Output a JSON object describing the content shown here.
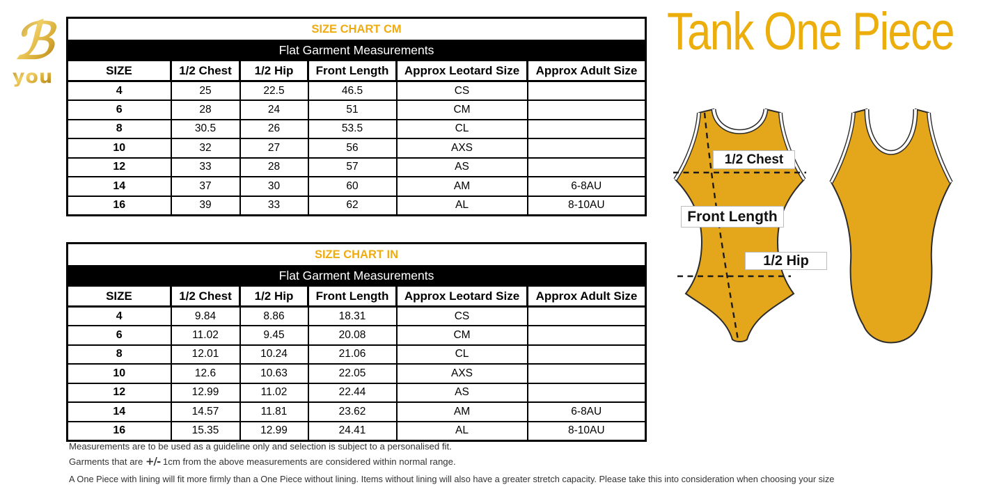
{
  "header": {
    "product_title": "Tank One Piece"
  },
  "logo": {
    "letter": "ℬ",
    "word": "you"
  },
  "colors": {
    "accent_gold": "#EFAC10",
    "title_gold": "#EBAE0C",
    "leotard_gold": "#E4A71C",
    "bar_black": "#000000"
  },
  "tables": [
    {
      "title": "SIZE CHART CM",
      "subtitle": "Flat Garment Measurements",
      "columns": [
        "SIZE",
        "1/2 Chest",
        "1/2 Hip",
        "Front Length",
        "Approx Leotard Size",
        "Approx Adult Size"
      ],
      "rows": [
        [
          "4",
          "25",
          "22.5",
          "46.5",
          "CS",
          ""
        ],
        [
          "6",
          "28",
          "24",
          "51",
          "CM",
          ""
        ],
        [
          "8",
          "30.5",
          "26",
          "53.5",
          "CL",
          ""
        ],
        [
          "10",
          "32",
          "27",
          "56",
          "AXS",
          ""
        ],
        [
          "12",
          "33",
          "28",
          "57",
          "AS",
          ""
        ],
        [
          "14",
          "37",
          "30",
          "60",
          "AM",
          "6-8AU"
        ],
        [
          "16",
          "39",
          "33",
          "62",
          "AL",
          "8-10AU"
        ]
      ]
    },
    {
      "title": "SIZE CHART IN",
      "subtitle": "Flat Garment Measurements",
      "columns": [
        "SIZE",
        "1/2 Chest",
        "1/2 Hip",
        "Front Length",
        "Approx Leotard Size",
        "Approx Adult Size"
      ],
      "rows": [
        [
          "4",
          "9.84",
          "8.86",
          "18.31",
          "CS",
          ""
        ],
        [
          "6",
          "11.02",
          "9.45",
          "20.08",
          "CM",
          ""
        ],
        [
          "8",
          "12.01",
          "10.24",
          "21.06",
          "CL",
          ""
        ],
        [
          "10",
          "12.6",
          "10.63",
          "22.05",
          "AXS",
          ""
        ],
        [
          "12",
          "12.99",
          "11.02",
          "22.44",
          "AS",
          ""
        ],
        [
          "14",
          "14.57",
          "11.81",
          "23.62",
          "AM",
          "6-8AU"
        ],
        [
          "16",
          "15.35",
          "12.99",
          "24.41",
          "AL",
          "8-10AU"
        ]
      ]
    }
  ],
  "diagram": {
    "chest_label": "1/2 Chest",
    "front_length_label": "Front Length",
    "hip_label": "1/2 Hip"
  },
  "footnotes": {
    "line1": "Measurements are to be used as a guideline only and selection is subject to a personalised fit.",
    "line2_pre": "Garments that are ",
    "line2_sym": "+/-",
    "line2_post": " 1cm from the above measurements are considered within normal range.",
    "line3": "A One Piece with lining will fit more firmly than a One Piece without lining.  Items without lining will also have a greater stretch capacity. Please take this into consideration when choosing your size"
  }
}
